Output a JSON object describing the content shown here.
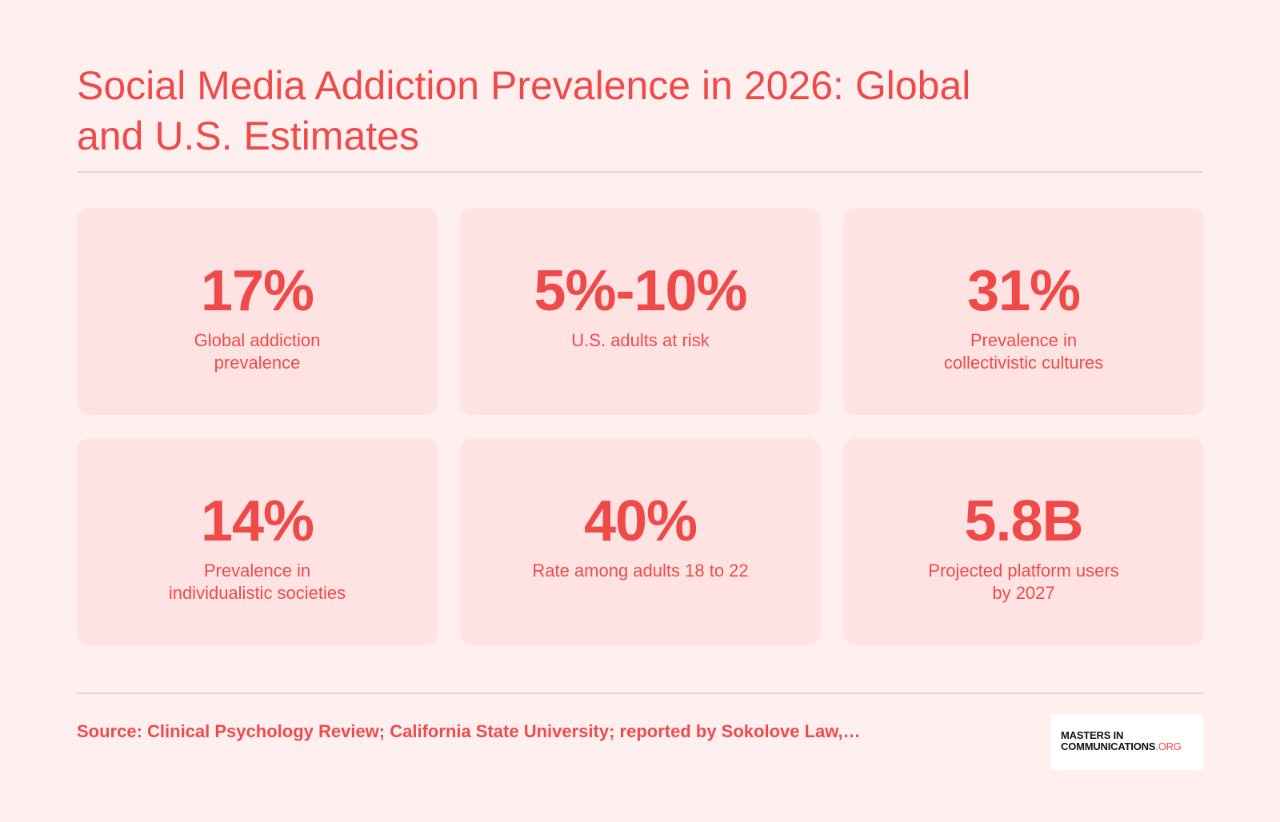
{
  "title": "Social Media Addiction Prevalence in 2026: Global and U.S. Estimates",
  "stats": [
    {
      "value": "17%",
      "label": "Global addiction prevalence"
    },
    {
      "value": "5%-10%",
      "label": "U.S. adults at risk"
    },
    {
      "value": "31%",
      "label": "Prevalence in collectivistic cultures"
    },
    {
      "value": "14%",
      "label": "Prevalence in individualistic societies"
    },
    {
      "value": "40%",
      "label": "Rate among adults 18 to 22"
    },
    {
      "value": "5.8B",
      "label": "Projected platform users by 2027"
    }
  ],
  "source": "Source: Clinical Psychology Review; California State University; reported by Sokolove Law,…",
  "logo": {
    "line1": "MASTERS IN",
    "line2_main": "COMMUNICATIONS",
    "line2_suffix": ".ORG"
  },
  "colors": {
    "accent": "#ef4a4a",
    "background": "#fff0ef",
    "card": "#ffe3e2"
  }
}
